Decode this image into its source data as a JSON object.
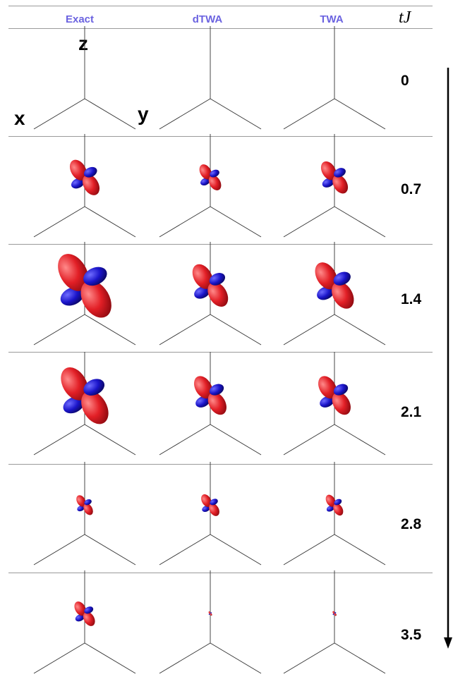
{
  "columns": [
    {
      "label": "Exact"
    },
    {
      "label": "dTWA"
    },
    {
      "label": "TWA"
    }
  ],
  "time_header": "tJ",
  "axis_labels": {
    "x": "x",
    "y": "y",
    "z": "z"
  },
  "rows": [
    {
      "t": "0",
      "lobes": [
        0,
        0,
        0
      ]
    },
    {
      "t": "0.7",
      "lobes": [
        0.75,
        0.55,
        0.68
      ]
    },
    {
      "t": "1.4",
      "lobes": [
        1.35,
        0.9,
        0.98
      ]
    },
    {
      "t": "2.1",
      "lobes": [
        1.2,
        0.82,
        0.82
      ]
    },
    {
      "t": "2.8",
      "lobes": [
        0.42,
        0.46,
        0.44
      ]
    },
    {
      "t": "3.5",
      "lobes": [
        0.52,
        0.09,
        0.1
      ]
    }
  ],
  "colors": {
    "positive": "#e21f26",
    "negative": "#1a14c9",
    "axes": "#333333",
    "header": "#6b63e0"
  }
}
